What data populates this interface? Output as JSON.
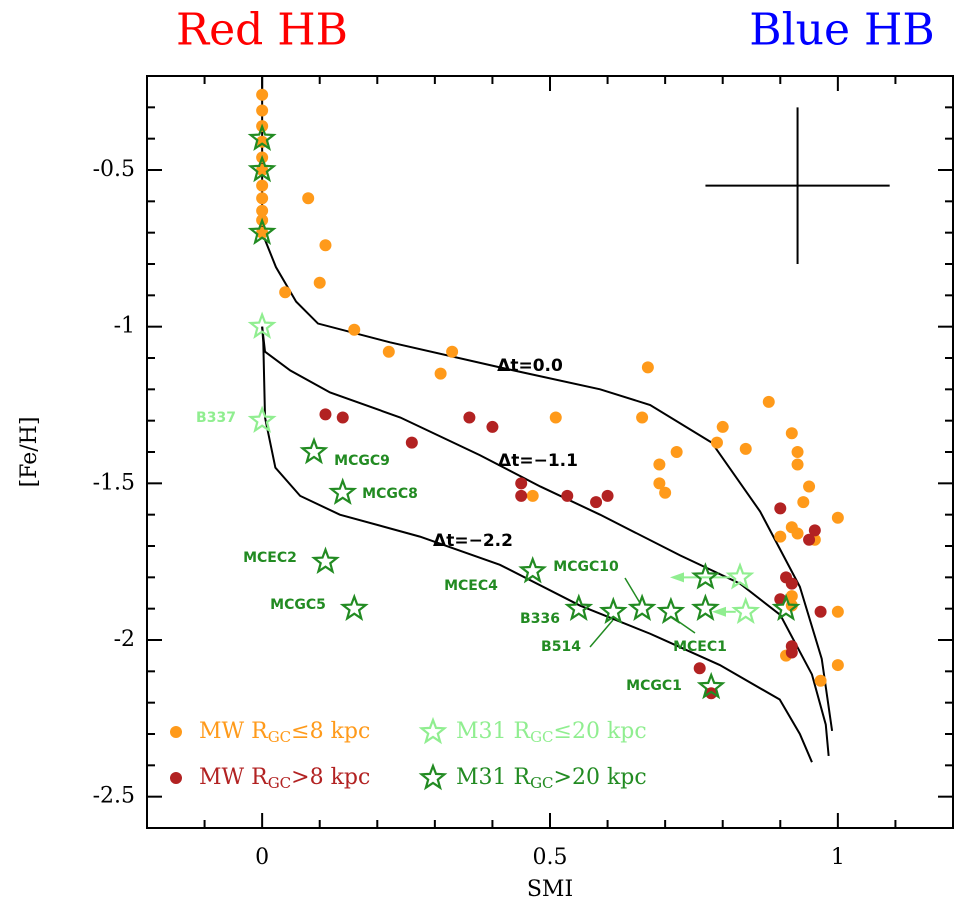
{
  "chart_data": {
    "type": "scatter",
    "title_left": "Red HB",
    "title_right": "Blue HB",
    "title_left_color": "#ff0000",
    "title_right_color": "#0000ff",
    "x_label": "SMI",
    "y_label": "[Fe/H]",
    "xlim": [
      -0.2,
      1.2
    ],
    "ylim": [
      -2.6,
      -0.2
    ],
    "xticks": [
      0,
      0.5,
      1
    ],
    "yticks": [
      -0.5,
      -1,
      -1.5,
      -2,
      -2.5
    ],
    "xminorticks": [
      -0.1,
      0.1,
      0.2,
      0.3,
      0.4,
      0.6,
      0.7,
      0.8,
      0.9,
      1.1
    ],
    "yminorticks": [
      -0.3,
      -0.4,
      -0.6,
      -0.7,
      -0.8,
      -0.9,
      -1.1,
      -1.2,
      -1.3,
      -1.4,
      -1.6,
      -1.7,
      -1.8,
      -1.9,
      -2.1,
      -2.2,
      -2.3,
      -2.4
    ],
    "legend": "lower left",
    "series": [
      {
        "name": [
          "MW R",
          "GC",
          "≤8 kpc"
        ],
        "marker": "dot",
        "color": "#ff9a1a",
        "x": [
          0,
          0,
          0,
          0,
          0,
          0,
          0,
          0,
          0,
          0,
          0,
          0.08,
          0.11,
          0.1,
          0.04,
          0.16,
          0.22,
          0.33,
          0.31,
          0.51,
          0.47,
          0.67,
          0.66,
          0.69,
          0.69,
          0.7,
          0.72,
          0.79,
          0.8,
          0.84,
          0.88,
          0.92,
          0.93,
          0.93,
          0.95,
          0.94,
          0.92,
          0.93,
          0.96,
          0.9,
          1.0,
          0.92,
          0.91,
          1.0,
          1.0,
          0.97,
          0.92
        ],
        "values": [
          -0.26,
          -0.31,
          -0.36,
          -0.41,
          -0.46,
          -0.5,
          -0.55,
          -0.59,
          -0.63,
          -0.66,
          -0.7,
          -0.59,
          -0.74,
          -0.86,
          -0.89,
          -1.01,
          -1.08,
          -1.08,
          -1.15,
          -1.29,
          -1.54,
          -1.13,
          -1.29,
          -1.44,
          -1.5,
          -1.53,
          -1.4,
          -1.37,
          -1.32,
          -1.39,
          -1.24,
          -1.34,
          -1.4,
          -1.44,
          -1.51,
          -1.56,
          -1.64,
          -1.66,
          -1.68,
          -1.67,
          -1.61,
          -1.86,
          -2.05,
          -1.91,
          -2.08,
          -2.13,
          -1.89
        ]
      },
      {
        "name": [
          "MW R",
          "GC",
          ">8 kpc"
        ],
        "marker": "dot",
        "color": "#b22222",
        "x": [
          0.11,
          0.14,
          0.26,
          0.36,
          0.4,
          0.45,
          0.45,
          0.53,
          0.58,
          0.6,
          0.9,
          0.91,
          0.92,
          0.9,
          0.97,
          0.92,
          0.92,
          0.96,
          0.95,
          0.76,
          0.78
        ],
        "values": [
          -1.28,
          -1.29,
          -1.37,
          -1.29,
          -1.32,
          -1.5,
          -1.54,
          -1.54,
          -1.56,
          -1.54,
          -1.58,
          -1.8,
          -1.82,
          -1.87,
          -1.91,
          -2.02,
          -2.04,
          -1.65,
          -1.68,
          -2.09,
          -2.17
        ]
      },
      {
        "name": [
          "M31 R",
          "GC",
          "≤20 kpc"
        ],
        "marker": "star",
        "color": "#90ee90",
        "x": [
          0,
          0,
          0.83,
          0.84
        ],
        "values": [
          -1.0,
          -1.3,
          -1.8,
          -1.91
        ]
      },
      {
        "name": [
          "M31 R",
          "GC",
          ">20 kpc"
        ],
        "marker": "star",
        "color": "#228b22",
        "x": [
          0,
          0,
          0,
          0.09,
          0.14,
          0.11,
          0.16,
          0.47,
          0.55,
          0.61,
          0.66,
          0.71,
          0.77,
          0.77,
          0.91,
          0.78
        ],
        "values": [
          -0.4,
          -0.5,
          -0.7,
          -1.4,
          -1.53,
          -1.75,
          -1.9,
          -1.78,
          -1.9,
          -1.91,
          -1.9,
          -1.91,
          -1.8,
          -1.9,
          -1.9,
          -2.15
        ]
      }
    ],
    "point_labels": [
      "B337",
      "MCGC9",
      "MCGC8",
      "MCEC2",
      "MCGC5",
      "MCEC4",
      "MCGC10",
      "B336",
      "B514",
      "MCEC1",
      "MCGC1"
    ],
    "models": [
      {
        "name": "Δt=0.0",
        "x": [
          0,
          0,
          0.024,
          0.059,
          0.097,
          0.222,
          0.413,
          0.587,
          0.674,
          0.781,
          0.865,
          0.934,
          0.972,
          0.99
        ],
        "values": [
          -0.2,
          -0.7,
          -0.81,
          -0.92,
          -0.99,
          -1.05,
          -1.13,
          -1.2,
          -1.25,
          -1.37,
          -1.59,
          -1.83,
          -2.06,
          -2.29
        ]
      },
      {
        "name": "Δt=−1.1",
        "x": [
          0,
          0.005,
          0.049,
          0.118,
          0.24,
          0.378,
          0.483,
          0.587,
          0.726,
          0.83,
          0.9,
          0.955,
          0.979,
          0.984
        ],
        "values": [
          -1.0,
          -1.08,
          -1.14,
          -1.21,
          -1.29,
          -1.41,
          -1.51,
          -1.6,
          -1.73,
          -1.82,
          -1.92,
          -2.11,
          -2.27,
          -2.37
        ]
      },
      {
        "name": "Δt=−2.2",
        "x": [
          0,
          0.002,
          0.005,
          0.023,
          0.066,
          0.135,
          0.274,
          0.413,
          0.552,
          0.674,
          0.795,
          0.899,
          0.934,
          0.955
        ],
        "values": [
          -1.0,
          -1.05,
          -1.29,
          -1.45,
          -1.54,
          -1.6,
          -1.67,
          -1.76,
          -1.89,
          -1.98,
          -2.08,
          -2.19,
          -2.3,
          -2.39
        ]
      }
    ],
    "error_bar": {
      "x": 0.93,
      "y": -0.55,
      "xerr": 0.16,
      "yerr": 0.25
    }
  }
}
